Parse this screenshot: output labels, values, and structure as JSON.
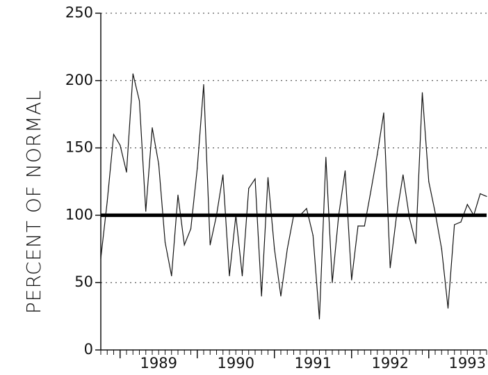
{
  "chart_data": {
    "type": "line",
    "title": "",
    "ylabel": "PERCENT OF NORMAL",
    "xlabel": "",
    "ylim": [
      0,
      250
    ],
    "xlim": [
      1988.75,
      1993.75
    ],
    "y_ticks": [
      0,
      50,
      100,
      150,
      200,
      250
    ],
    "y_tick_labels": [
      "0",
      "50",
      "100",
      "150",
      "200",
      "250"
    ],
    "x_ticks": [
      1989,
      1990,
      1991,
      1992,
      1993
    ],
    "x_tick_labels": [
      "1989",
      "1990",
      "1991",
      "1992",
      "1993"
    ],
    "grid": "horizontal dotted",
    "reference_line": {
      "y": 100
    },
    "series": [
      {
        "x": [
          1988.75,
          1988.833,
          1988.917,
          1989.0,
          1989.083,
          1989.167,
          1989.25,
          1989.333,
          1989.417,
          1989.5,
          1989.583,
          1989.667,
          1989.75,
          1989.833,
          1989.917,
          1990.0,
          1990.083,
          1990.167,
          1990.25,
          1990.333,
          1990.417,
          1990.5,
          1990.583,
          1990.667,
          1990.75,
          1990.833,
          1990.917,
          1991.0,
          1991.083,
          1991.167,
          1991.25,
          1991.333,
          1991.417,
          1991.5,
          1991.583,
          1991.667,
          1991.75,
          1991.833,
          1991.917,
          1992.0,
          1992.083,
          1992.167,
          1992.25,
          1992.333,
          1992.417,
          1992.5,
          1992.583,
          1992.667,
          1992.75,
          1992.833,
          1992.917,
          1993.0,
          1993.083,
          1993.167,
          1993.25,
          1993.333,
          1993.417,
          1993.5,
          1993.583,
          1993.667,
          1993.75
        ],
        "values": [
          68,
          110,
          160,
          152,
          132,
          205,
          185,
          103,
          165,
          138,
          80,
          55,
          115,
          78,
          90,
          135,
          197,
          78,
          100,
          130,
          55,
          100,
          55,
          120,
          127,
          40,
          128,
          75,
          40,
          75,
          100,
          100,
          105,
          85,
          23,
          143,
          50,
          100,
          133,
          52,
          92,
          92,
          118,
          145,
          176,
          61,
          100,
          130,
          98,
          79,
          191,
          125,
          102,
          75,
          31,
          93,
          95,
          108,
          100,
          116,
          114
        ]
      }
    ]
  }
}
